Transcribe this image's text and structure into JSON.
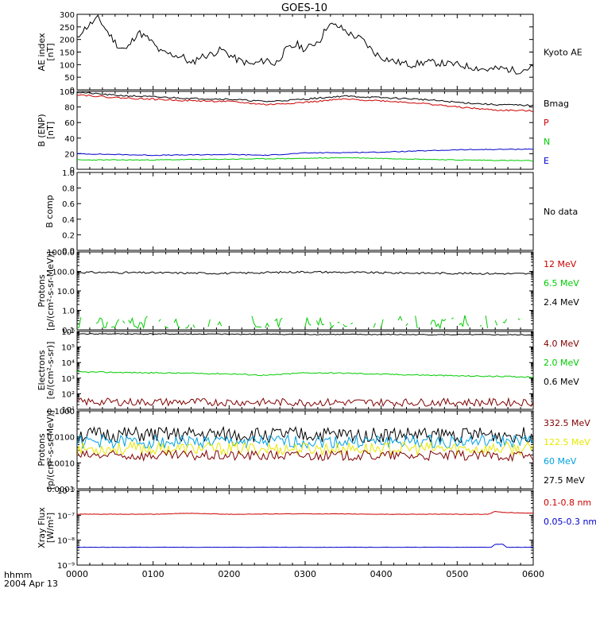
{
  "title": "GOES-10",
  "bottom_label_1": "hhmm",
  "bottom_label_2": "2004 Apr 13",
  "time_ticks": [
    "0000",
    "0100",
    "0200",
    "0300",
    "0400",
    "0500",
    "0600"
  ],
  "colors": {
    "black": "#000000",
    "red": "#cc0000",
    "darkred": "#800000",
    "green": "#00cc00",
    "blue": "#0000cc",
    "cyan": "#00a0e0",
    "yellow": "#e8e800"
  },
  "chart_data": [
    {
      "type": "line",
      "id": "ae",
      "ylabel_1": "AE index",
      "ylabel_2": "[nT]",
      "ylim": [
        0,
        300
      ],
      "log": false,
      "yticks": [
        0,
        50,
        100,
        150,
        200,
        250,
        300
      ],
      "ytick_labels": [
        "0",
        "50",
        "100",
        "150",
        "200",
        "250",
        "300"
      ],
      "legend": [
        {
          "text": "Kyoto AE",
          "color": "#000000"
        }
      ],
      "series": [
        {
          "color": "#000000",
          "noise": 14,
          "seed": 11,
          "points": [
            [
              0,
              200
            ],
            [
              0.05,
              230
            ],
            [
              0.15,
              255
            ],
            [
              0.28,
              285
            ],
            [
              0.4,
              230
            ],
            [
              0.55,
              170
            ],
            [
              0.65,
              160
            ],
            [
              0.8,
              230
            ],
            [
              0.95,
              200
            ],
            [
              1.1,
              150
            ],
            [
              1.25,
              140
            ],
            [
              1.4,
              130
            ],
            [
              1.5,
              100
            ],
            [
              1.6,
              130
            ],
            [
              1.75,
              140
            ],
            [
              1.9,
              160
            ],
            [
              2.1,
              120
            ],
            [
              2.3,
              100
            ],
            [
              2.5,
              120
            ],
            [
              2.6,
              100
            ],
            [
              2.75,
              160
            ],
            [
              2.9,
              180
            ],
            [
              3.0,
              160
            ],
            [
              3.1,
              180
            ],
            [
              3.2,
              200
            ],
            [
              3.3,
              260
            ],
            [
              3.45,
              250
            ],
            [
              3.6,
              220
            ],
            [
              3.75,
              200
            ],
            [
              3.9,
              150
            ],
            [
              4.0,
              130
            ],
            [
              4.2,
              110
            ],
            [
              4.4,
              100
            ],
            [
              4.6,
              110
            ],
            [
              4.8,
              105
            ],
            [
              5.0,
              100
            ],
            [
              5.2,
              90
            ],
            [
              5.4,
              80
            ],
            [
              5.6,
              85
            ],
            [
              5.8,
              75
            ],
            [
              6.0,
              90
            ]
          ]
        }
      ]
    },
    {
      "type": "line",
      "id": "benp",
      "ylabel_1": "B (ENP)",
      "ylabel_2": "[nT]",
      "ylim": [
        0,
        100
      ],
      "log": false,
      "yticks": [
        0,
        20,
        40,
        60,
        80,
        100
      ],
      "ytick_labels": [
        "0",
        "20",
        "40",
        "60",
        "80",
        "100"
      ],
      "legend": [
        {
          "text": "Bmag",
          "color": "#000000"
        },
        {
          "text": "P",
          "color": "#cc0000"
        },
        {
          "text": "N",
          "color": "#00cc00"
        },
        {
          "text": "E",
          "color": "#0000cc"
        }
      ],
      "series": [
        {
          "name": "Bmag",
          "color": "#000000",
          "noise": 1,
          "seed": 21,
          "points": [
            [
              0,
              99
            ],
            [
              0.5,
              95
            ],
            [
              1,
              93
            ],
            [
              1.5,
              91
            ],
            [
              2,
              90
            ],
            [
              2.5,
              87
            ],
            [
              3,
              90
            ],
            [
              3.5,
              94
            ],
            [
              4,
              92
            ],
            [
              4.5,
              90
            ],
            [
              5,
              86
            ],
            [
              5.5,
              83
            ],
            [
              6,
              82
            ]
          ]
        },
        {
          "name": "P",
          "color": "#cc0000",
          "noise": 1,
          "seed": 22,
          "points": [
            [
              0,
              96
            ],
            [
              0.5,
              92
            ],
            [
              1,
              90
            ],
            [
              1.5,
              88
            ],
            [
              2,
              87
            ],
            [
              2.5,
              83
            ],
            [
              3,
              86
            ],
            [
              3.5,
              90
            ],
            [
              4,
              88
            ],
            [
              4.5,
              85
            ],
            [
              5,
              80
            ],
            [
              5.5,
              76
            ],
            [
              6,
              75
            ]
          ]
        },
        {
          "name": "N",
          "color": "#00cc00",
          "noise": 0.5,
          "seed": 23,
          "points": [
            [
              0,
              12
            ],
            [
              1,
              12
            ],
            [
              2,
              13
            ],
            [
              3,
              14
            ],
            [
              3.5,
              15
            ],
            [
              4,
              14
            ],
            [
              5,
              12
            ],
            [
              6,
              11
            ]
          ]
        },
        {
          "name": "E",
          "color": "#0000cc",
          "noise": 0.5,
          "seed": 24,
          "points": [
            [
              0,
              20
            ],
            [
              1,
              18
            ],
            [
              2,
              19
            ],
            [
              2.5,
              18
            ],
            [
              3,
              21
            ],
            [
              4,
              22
            ],
            [
              5,
              25
            ],
            [
              6,
              26
            ]
          ]
        }
      ]
    },
    {
      "type": "line",
      "id": "bcomp",
      "ylabel_1": "B comp",
      "ylabel_2": "",
      "ylim": [
        0,
        1
      ],
      "log": false,
      "yticks": [
        0,
        0.2,
        0.4,
        0.6,
        0.8,
        1.0
      ],
      "ytick_labels": [
        "0.0",
        "0.2",
        "0.4",
        "0.6",
        "0.8",
        "1.0"
      ],
      "legend": [
        {
          "text": "No data",
          "color": "#000000"
        }
      ],
      "series": []
    },
    {
      "type": "line",
      "id": "protons_low",
      "ylabel_1": "Protons",
      "ylabel_2": "[p/(cm²-s-sr-MeV)]",
      "ylim": [
        0.1,
        1000
      ],
      "log": true,
      "yticks": [
        0.1,
        1,
        10,
        100,
        1000
      ],
      "ytick_labels": [
        "0.1",
        "1.0",
        "10.0",
        "100.0",
        "1000.0"
      ],
      "legend": [
        {
          "text": "12 MeV",
          "color": "#cc0000"
        },
        {
          "text": "6.5 MeV",
          "color": "#00cc00"
        },
        {
          "text": "2.4 MeV",
          "color": "#000000"
        }
      ],
      "series": [
        {
          "name": "2.4 MeV",
          "color": "#000000",
          "noise": 0.05,
          "seed": 31,
          "points": [
            [
              0,
              90
            ],
            [
              1,
              85
            ],
            [
              2,
              80
            ],
            [
              3,
              95
            ],
            [
              4,
              85
            ],
            [
              5,
              80
            ],
            [
              6,
              75
            ]
          ]
        },
        {
          "name": "6.5 MeV",
          "color": "#00cc00",
          "noise": 0.5,
          "seed": 32,
          "spiky": true,
          "points": [
            [
              0,
              0.25
            ],
            [
              6,
              0.2
            ]
          ]
        }
      ]
    },
    {
      "type": "line",
      "id": "electrons",
      "ylabel_1": "Electrons",
      "ylabel_2": "[e/(cm²-s-sr)]",
      "ylim": [
        10,
        1000000
      ],
      "log": true,
      "yticks": [
        10,
        100,
        1000,
        10000,
        100000,
        1000000
      ],
      "ytick_labels": [
        "10¹",
        "10²",
        "10³",
        "10⁴",
        "10⁵",
        "10⁶"
      ],
      "legend": [
        {
          "text": "4.0 MeV",
          "color": "#800000"
        },
        {
          "text": "2.0 MeV",
          "color": "#00cc00"
        },
        {
          "text": "0.6 MeV",
          "color": "#000000"
        }
      ],
      "series": [
        {
          "name": "0.6 MeV",
          "color": "#000000",
          "noise": 0.03,
          "seed": 41,
          "points": [
            [
              0,
              700000
            ],
            [
              3,
              650000
            ],
            [
              6,
              600000
            ]
          ]
        },
        {
          "name": "2.0 MeV",
          "color": "#00cc00",
          "noise": 0.04,
          "seed": 42,
          "points": [
            [
              0,
              2500
            ],
            [
              1,
              2200
            ],
            [
              2,
              1900
            ],
            [
              2.5,
              1500
            ],
            [
              3,
              2200
            ],
            [
              3.5,
              2100
            ],
            [
              4,
              1800
            ],
            [
              5,
              1400
            ],
            [
              6,
              1200
            ]
          ]
        },
        {
          "name": "4.0 MeV",
          "color": "#800000",
          "noise": 0.25,
          "seed": 43,
          "points": [
            [
              0,
              30
            ],
            [
              3,
              28
            ],
            [
              6,
              28
            ]
          ]
        }
      ]
    },
    {
      "type": "line",
      "id": "protons_high",
      "ylabel_1": "Protons",
      "ylabel_2": "[p/(cm²-s-sr-MeV)]",
      "ylim": [
        0.0001,
        0.1
      ],
      "log": true,
      "yticks": [
        0.0001,
        0.001,
        0.01,
        0.1
      ],
      "ytick_labels": [
        "0.0001",
        "0.0010",
        "0.0100",
        "0.1000"
      ],
      "legend": [
        {
          "text": "332.5 MeV",
          "color": "#800000"
        },
        {
          "text": "122.5 MeV",
          "color": "#e8e800"
        },
        {
          "text": "60 MeV",
          "color": "#00a0e0"
        },
        {
          "text": "27.5 MeV",
          "color": "#000000"
        }
      ],
      "series": [
        {
          "name": "27.5 MeV",
          "color": "#000000",
          "noise": 0.3,
          "seed": 51,
          "points": [
            [
              0,
              0.012
            ],
            [
              6,
              0.012
            ]
          ]
        },
        {
          "name": "60 MeV",
          "color": "#00a0e0",
          "noise": 0.25,
          "seed": 52,
          "points": [
            [
              0,
              0.0065
            ],
            [
              6,
              0.0065
            ]
          ]
        },
        {
          "name": "122.5 MeV",
          "color": "#e8e800",
          "noise": 0.25,
          "seed": 53,
          "points": [
            [
              0,
              0.0035
            ],
            [
              6,
              0.0035
            ]
          ]
        },
        {
          "name": "332.5 MeV",
          "color": "#800000",
          "noise": 0.2,
          "seed": 54,
          "points": [
            [
              0,
              0.0019
            ],
            [
              6,
              0.0019
            ]
          ]
        }
      ]
    },
    {
      "type": "line",
      "id": "xray",
      "ylabel_1": "Xray Flux",
      "ylabel_2": "[W/m²]",
      "ylim": [
        1e-09,
        1e-06
      ],
      "log": true,
      "yticks": [
        1e-09,
        1e-08,
        1e-07,
        1e-06
      ],
      "ytick_labels": [
        "10⁻⁹",
        "10⁻⁸",
        "10⁻⁷",
        "10⁻⁶"
      ],
      "legend": [
        {
          "text": "0.1-0.8 nm",
          "color": "#cc0000"
        },
        {
          "text": "0.05-0.3 nm",
          "color": "#0000cc"
        }
      ],
      "series": [
        {
          "name": "0.1-0.8 nm",
          "color": "#cc0000",
          "noise": 0.01,
          "seed": 61,
          "points": [
            [
              0,
              1.1e-07
            ],
            [
              1,
              1.1e-07
            ],
            [
              1.5,
              1.2e-07
            ],
            [
              2,
              1.1e-07
            ],
            [
              3,
              1.15e-07
            ],
            [
              4,
              1.1e-07
            ],
            [
              5,
              1.1e-07
            ],
            [
              5.4,
              1.1e-07
            ],
            [
              5.5,
              1.4e-07
            ],
            [
              5.6,
              1.3e-07
            ],
            [
              6,
              1.2e-07
            ]
          ]
        },
        {
          "name": "0.05-0.3 nm",
          "color": "#0000cc",
          "noise": 0.005,
          "seed": 62,
          "points": [
            [
              0,
              5.2e-09
            ],
            [
              5.45,
              5.2e-09
            ],
            [
              5.5,
              6.8e-09
            ],
            [
              5.6,
              6.8e-09
            ],
            [
              5.65,
              5.2e-09
            ],
            [
              6,
              5.2e-09
            ]
          ]
        }
      ]
    }
  ]
}
